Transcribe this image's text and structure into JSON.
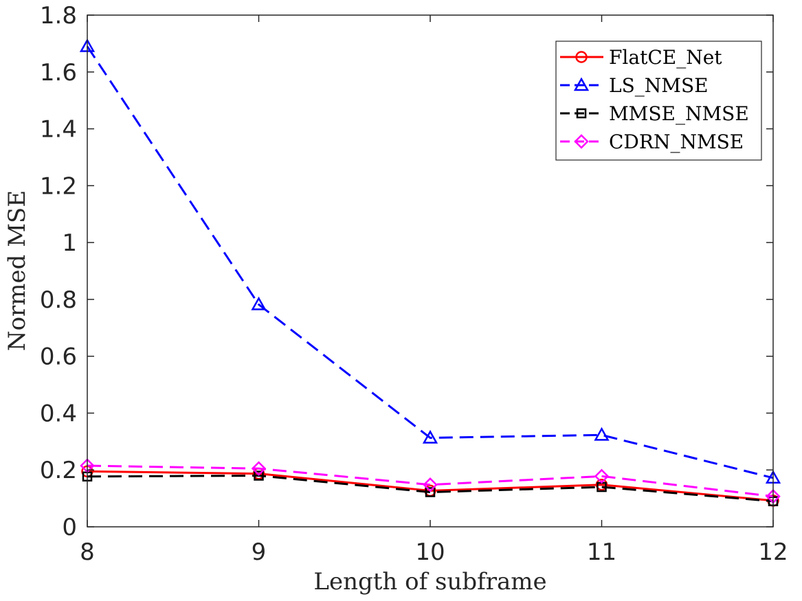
{
  "chart_data": {
    "type": "line",
    "title": "",
    "xlabel": "Length of subframe",
    "ylabel": "Normed MSE",
    "x": [
      8,
      9,
      10,
      11,
      12
    ],
    "xlim": [
      8,
      12
    ],
    "ylim": [
      0,
      1.8
    ],
    "xticks": [
      "8",
      "9",
      "10",
      "11",
      "12"
    ],
    "yticks": [
      "0",
      "0.2",
      "0.4",
      "0.6",
      "0.8",
      "1",
      "1.2",
      "1.4",
      "1.6",
      "1.8"
    ],
    "grid": false,
    "legend_position": "top-right",
    "series": [
      {
        "name": "FlatCE_Net",
        "values": [
          0.195,
          0.187,
          0.127,
          0.148,
          0.092
        ],
        "color": "#ff0000",
        "dash": "solid",
        "marker": "circle"
      },
      {
        "name": "LS_NMSE",
        "values": [
          1.69,
          0.782,
          0.313,
          0.323,
          0.172
        ],
        "color": "#0000ff",
        "dash": "dashed",
        "marker": "triangle"
      },
      {
        "name": "MMSE_NMSE",
        "values": [
          0.177,
          0.18,
          0.122,
          0.14,
          0.09
        ],
        "color": "#000000",
        "dash": "dashed",
        "marker": "square"
      },
      {
        "name": "CDRN_NMSE",
        "values": [
          0.215,
          0.205,
          0.148,
          0.178,
          0.107
        ],
        "color": "#ff00ff",
        "dash": "dashed",
        "marker": "diamond"
      }
    ]
  }
}
